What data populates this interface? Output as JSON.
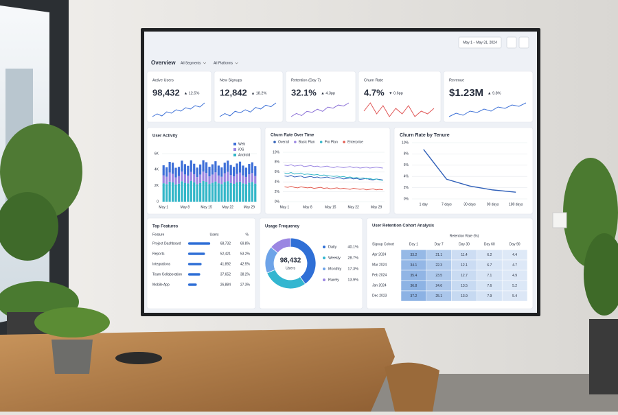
{
  "header": {
    "title": "Overview",
    "filters": [
      "All Segments",
      "All Platforms"
    ],
    "date_range": "May 1 – May 31, 2024"
  },
  "kpis": [
    {
      "label": "Active Users",
      "value": "98,432",
      "delta": "▲ 12.5%",
      "delta_color": "#1f9d5c",
      "line_color": "#3b6fd6",
      "trend": [
        40,
        44,
        41,
        47,
        45,
        50,
        48,
        53,
        51,
        56,
        54,
        60
      ]
    },
    {
      "label": "New Signups",
      "value": "12,842",
      "delta": "▲ 18.2%",
      "delta_color": "#1f9d5c",
      "line_color": "#3b6fd6",
      "trend": [
        30,
        34,
        31,
        37,
        35,
        39,
        36,
        42,
        40,
        45,
        43,
        48
      ]
    },
    {
      "label": "Retention (Day 7)",
      "value": "32.1%",
      "delta": "▲ 4.3pp",
      "delta_color": "#1f9d5c",
      "line_color": "#8a6fd6",
      "trend": [
        20,
        23,
        21,
        25,
        24,
        27,
        25,
        29,
        28,
        31,
        30,
        33
      ]
    },
    {
      "label": "Churn Rate",
      "value": "4.7%",
      "delta": "▼ 0.6pp",
      "delta_color": "#d94141",
      "line_color": "#e05555",
      "trend": [
        5.0,
        5.3,
        4.9,
        5.2,
        4.8,
        5.1,
        4.9,
        5.2,
        4.8,
        5.0,
        4.9,
        5.1
      ]
    },
    {
      "label": "Revenue",
      "value": "$1.23M",
      "delta": "▲ 9.8%",
      "delta_color": "#1f9d5c",
      "line_color": "#3b6fd6",
      "trend": [
        50,
        55,
        52,
        58,
        56,
        61,
        58,
        64,
        62,
        67,
        65,
        70
      ]
    }
  ],
  "chart_data": [
    {
      "type": "bar",
      "stacked": true,
      "title": "User Activity",
      "categories": [
        "May 1",
        null,
        null,
        null,
        null,
        null,
        null,
        "May 8",
        null,
        null,
        null,
        null,
        null,
        null,
        "May 15",
        null,
        null,
        null,
        null,
        null,
        null,
        "May 22",
        null,
        null,
        null,
        null,
        null,
        null,
        "May 29",
        null,
        null
      ],
      "series": [
        {
          "name": "Web",
          "color": "#3d6fd8",
          "values": [
            1250,
            1180,
            1320,
            1400,
            1210,
            1150,
            1380,
            1290,
            1220,
            1450,
            1310,
            1180,
            1260,
            1420,
            1350,
            1200,
            1280,
            1390,
            1240,
            1170,
            1330,
            1410,
            1260,
            1190,
            1300,
            1370,
            1230,
            1160,
            1290,
            1340,
            1220
          ]
        },
        {
          "name": "iOS",
          "color": "#9b86e2",
          "values": [
            1000,
            920,
            1150,
            1080,
            880,
            950,
            1200,
            1050,
            980,
            1120,
            1010,
            900,
            1060,
            1180,
            1100,
            940,
            1030,
            1140,
            970,
            910,
            1090,
            1160,
            1000,
            930,
            1070,
            1130,
            990,
            900,
            1040,
            1110,
            960
          ]
        },
        {
          "name": "Android",
          "color": "#33b6c8",
          "values": [
            2300,
            2200,
            2500,
            2400,
            2150,
            2250,
            2550,
            2350,
            2280,
            2600,
            2420,
            2180,
            2330,
            2580,
            2480,
            2220,
            2360,
            2520,
            2300,
            2200,
            2450,
            2560,
            2320,
            2230,
            2400,
            2500,
            2290,
            2190,
            2380,
            2470,
            2260
          ]
        }
      ],
      "ylim": [
        0,
        6000
      ],
      "yticks": [
        0,
        {
          "value": 2000,
          "label": "2K"
        },
        {
          "value": 4000,
          "label": "4K"
        },
        {
          "value": 6000,
          "label": "6K"
        }
      ],
      "grid": true
    },
    {
      "type": "line",
      "title": "Churn Rate Over Time",
      "categories": [
        "May 1",
        null,
        null,
        null,
        null,
        null,
        null,
        "May 8",
        null,
        null,
        null,
        null,
        null,
        null,
        "May 15",
        null,
        null,
        null,
        null,
        null,
        null,
        "May 22",
        null,
        null,
        null,
        null,
        null,
        null,
        "May 29",
        null,
        null
      ],
      "series": [
        {
          "name": "Overall",
          "color": "#2f5fb8",
          "values": [
            5.2,
            5.1,
            5.3,
            5.0,
            5.1,
            5.2,
            4.9,
            5.0,
            5.1,
            4.9,
            5.0,
            4.8,
            4.9,
            5.0,
            4.8,
            4.7,
            4.9,
            4.8,
            4.6,
            4.7,
            4.8,
            4.6,
            4.7,
            4.5,
            4.6,
            4.7,
            4.5,
            4.4,
            4.6,
            4.5,
            4.4
          ]
        },
        {
          "name": "Basic Plan",
          "color": "#9b86e2",
          "values": [
            7.4,
            7.3,
            7.5,
            7.2,
            7.3,
            7.4,
            7.1,
            7.2,
            7.3,
            7.1,
            7.2,
            7.0,
            7.1,
            7.2,
            7.0,
            6.9,
            7.1,
            7.0,
            6.9,
            7.0,
            7.1,
            6.9,
            7.0,
            6.8,
            6.9,
            7.0,
            6.8,
            6.9,
            7.0,
            6.9,
            6.8
          ]
        },
        {
          "name": "Pro Plan",
          "color": "#33b6c8",
          "values": [
            5.8,
            5.7,
            5.9,
            5.6,
            5.7,
            5.8,
            5.5,
            5.6,
            5.5,
            5.4,
            5.5,
            5.3,
            5.4,
            5.3,
            5.2,
            5.1,
            5.2,
            5.0,
            5.1,
            4.9,
            5.0,
            4.8,
            4.9,
            4.7,
            4.8,
            4.6,
            4.7,
            4.5,
            4.6,
            4.4,
            4.3
          ]
        },
        {
          "name": "Enterprise",
          "color": "#e25a4f",
          "values": [
            3.0,
            2.9,
            3.1,
            2.9,
            2.8,
            3.0,
            2.9,
            2.8,
            2.9,
            2.7,
            2.8,
            2.9,
            2.7,
            2.8,
            2.6,
            2.7,
            2.8,
            2.6,
            2.7,
            2.6,
            2.5,
            2.7,
            2.6,
            2.5,
            2.6,
            2.4,
            2.5,
            2.6,
            2.4,
            2.5,
            2.4
          ]
        }
      ],
      "ylim": [
        0,
        10
      ],
      "yticks": [
        {
          "value": 0,
          "label": "0%"
        },
        {
          "value": 2,
          "label": "2%"
        },
        {
          "value": 4,
          "label": "4%"
        },
        {
          "value": 6,
          "label": "6%"
        },
        {
          "value": 8,
          "label": "8%"
        },
        {
          "value": 10,
          "label": "10%"
        }
      ],
      "grid": true
    },
    {
      "type": "line",
      "title": "Churn Rate by Tenure",
      "categories": [
        "1 day",
        "7 days",
        "30 days",
        "90 days",
        "180 days"
      ],
      "values": [
        8.8,
        3.5,
        2.3,
        1.6,
        1.2
      ],
      "color": "#2f5fb8",
      "ylim": [
        0,
        10
      ],
      "yticks": [
        {
          "value": 0,
          "label": "0%"
        },
        {
          "value": 2,
          "label": "2%"
        },
        {
          "value": 4,
          "label": "4%"
        },
        {
          "value": 6,
          "label": "6%"
        },
        {
          "value": 8,
          "label": "8%"
        },
        {
          "value": 10,
          "label": "10%"
        }
      ],
      "grid": true
    },
    {
      "type": "donut",
      "title": "Usage Frequency",
      "center_value": "98,432",
      "center_label": "Users",
      "categories": [
        "Daily",
        "Weekly",
        "Monthly",
        "Rarely"
      ],
      "values": [
        40.1,
        28.7,
        17.3,
        13.9
      ],
      "value_labels": [
        "40.1%",
        "28.7%",
        "17.3%",
        "13.9%"
      ],
      "colors": [
        "#2f6fd6",
        "#33b6d0",
        "#6da3e8",
        "#9b86e2"
      ]
    }
  ],
  "top_features": {
    "title": "Top Features",
    "columns": [
      "Feature",
      "Users",
      "%"
    ],
    "rows": [
      {
        "feature": "Project Dashboard",
        "users": "68,732",
        "share": 69.8,
        "share_label": "69.8%"
      },
      {
        "feature": "Reports",
        "users": "52,421",
        "share": 53.2,
        "share_label": "53.2%"
      },
      {
        "feature": "Integrations",
        "users": "41,892",
        "share": 42.5,
        "share_label": "42.5%"
      },
      {
        "feature": "Team Collaboration",
        "users": "37,652",
        "share": 38.2,
        "share_label": "38.2%"
      },
      {
        "feature": "Mobile App",
        "users": "26,884",
        "share": 27.3,
        "share_label": "27.3%"
      }
    ],
    "bar_color": "#2f6fd6"
  },
  "cohort": {
    "title": "User Retention Cohort Analysis",
    "group_label": "Retention Rate (%)",
    "row_header": "Signup Cohort",
    "columns": [
      "Day 1",
      "Day 7",
      "Day 30",
      "Day 60",
      "Day 90"
    ],
    "rows": [
      {
        "cohort": "Apr 2024",
        "values": [
          33.2,
          21.1,
          11.4,
          6.2,
          4.4
        ]
      },
      {
        "cohort": "Mar 2024",
        "values": [
          34.1,
          22.3,
          12.1,
          6.7,
          4.7
        ]
      },
      {
        "cohort": "Feb 2024",
        "values": [
          35.4,
          23.5,
          12.7,
          7.1,
          4.9
        ]
      },
      {
        "cohort": "Jan 2024",
        "values": [
          36.8,
          24.6,
          13.5,
          7.6,
          5.2
        ]
      },
      {
        "cohort": "Dec 2023",
        "values": [
          37.2,
          25.1,
          13.9,
          7.9,
          5.4
        ]
      }
    ]
  }
}
